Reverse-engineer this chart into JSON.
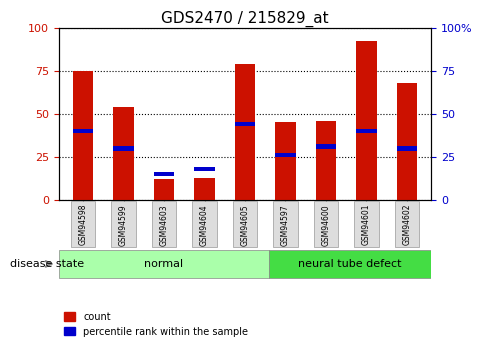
{
  "title": "GDS2470 / 215829_at",
  "samples": [
    "GSM94598",
    "GSM94599",
    "GSM94603",
    "GSM94604",
    "GSM94605",
    "GSM94597",
    "GSM94600",
    "GSM94601",
    "GSM94602"
  ],
  "count_values": [
    75,
    54,
    12,
    13,
    79,
    45,
    46,
    92,
    68
  ],
  "percentile_values": [
    40,
    30,
    15,
    18,
    44,
    26,
    31,
    40,
    30
  ],
  "normal_indices": [
    0,
    1,
    2,
    3,
    4
  ],
  "defect_indices": [
    5,
    6,
    7,
    8
  ],
  "bar_color": "#cc1100",
  "percentile_color": "#0000cc",
  "normal_color": "#aaffaa",
  "defect_color": "#44dd44",
  "tick_label_bg": "#dddddd",
  "ylim": [
    0,
    100
  ],
  "yticks": [
    0,
    25,
    50,
    75,
    100
  ],
  "left_ylabel_color": "#cc1100",
  "right_ylabel_color": "#0000cc",
  "bar_width": 0.5,
  "legend_count_label": "count",
  "legend_pct_label": "percentile rank within the sample",
  "normal_label": "normal",
  "defect_label": "neural tube defect",
  "disease_state_label": "disease state"
}
